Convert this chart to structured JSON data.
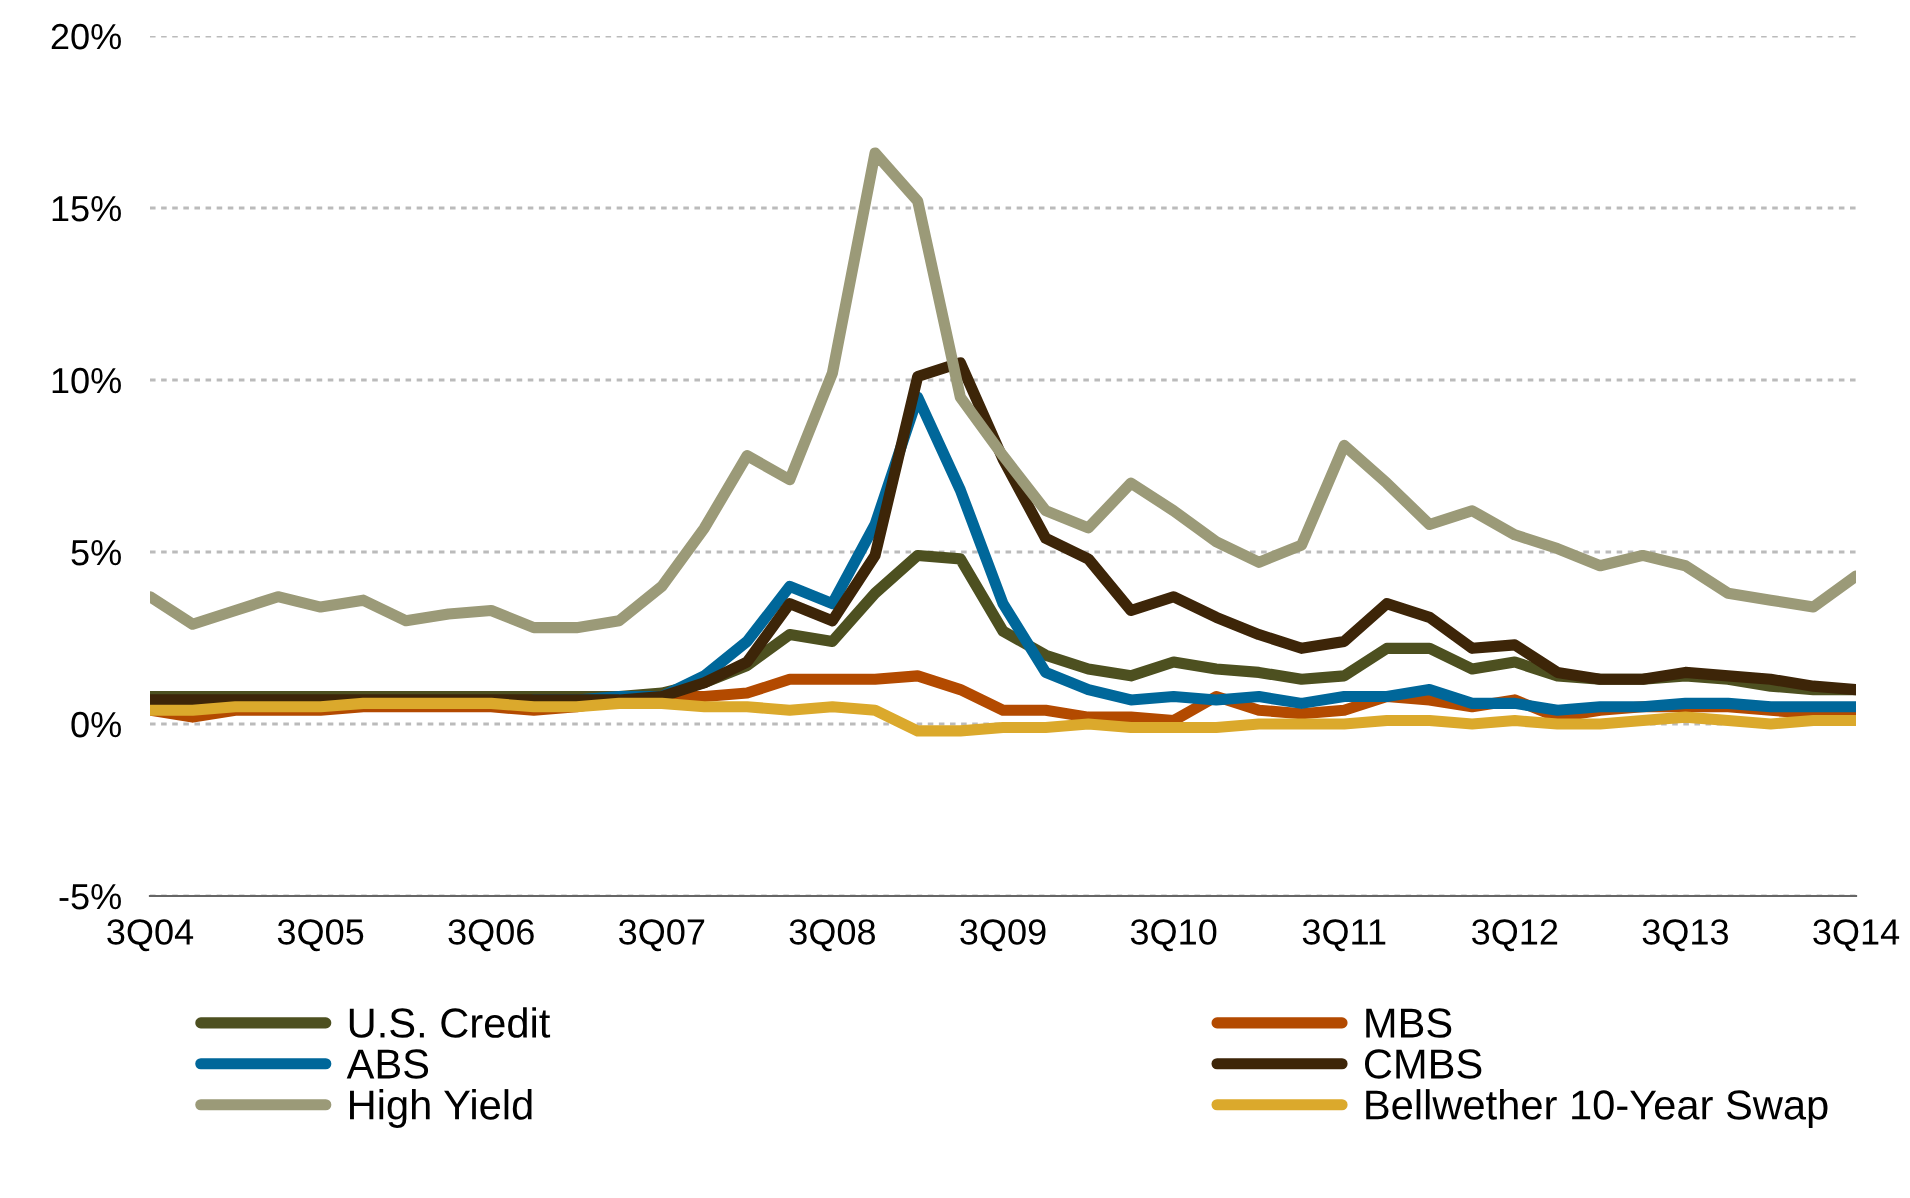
{
  "chart_data": {
    "type": "line",
    "categories": [
      "3Q04",
      null,
      null,
      null,
      "3Q05",
      null,
      null,
      null,
      "3Q06",
      null,
      null,
      null,
      "3Q07",
      null,
      null,
      null,
      "3Q08",
      null,
      null,
      null,
      "3Q09",
      null,
      null,
      null,
      "3Q10",
      null,
      null,
      null,
      "3Q11",
      null,
      null,
      null,
      "3Q12",
      null,
      null,
      null,
      "3Q13",
      null,
      null,
      null,
      "3Q14"
    ],
    "series": [
      {
        "name": "U.S. Credit",
        "color": "#4d5020",
        "values": [
          0.8,
          0.8,
          0.8,
          0.8,
          0.8,
          0.8,
          0.8,
          0.8,
          0.8,
          0.8,
          0.8,
          0.8,
          0.9,
          1.2,
          1.7,
          2.6,
          2.4,
          3.8,
          4.9,
          4.8,
          2.7,
          2.0,
          1.6,
          1.4,
          1.8,
          1.6,
          1.5,
          1.3,
          1.4,
          2.2,
          2.2,
          1.6,
          1.8,
          1.4,
          1.3,
          1.3,
          1.4,
          1.3,
          1.1,
          1.0,
          1.0
        ]
      },
      {
        "name": "MBS",
        "color": "#b34a00",
        "values": [
          0.4,
          0.2,
          0.4,
          0.4,
          0.4,
          0.5,
          0.5,
          0.5,
          0.5,
          0.4,
          0.5,
          0.7,
          0.8,
          0.8,
          0.9,
          1.3,
          1.3,
          1.3,
          1.4,
          1.0,
          0.4,
          0.4,
          0.2,
          0.2,
          0.1,
          0.8,
          0.4,
          0.3,
          0.4,
          0.8,
          0.7,
          0.5,
          0.7,
          0.2,
          0.4,
          0.5,
          0.5,
          0.5,
          0.4,
          0.3,
          0.3
        ]
      },
      {
        "name": "ABS",
        "color": "#00679a",
        "values": [
          null,
          null,
          null,
          null,
          null,
          null,
          null,
          null,
          null,
          0.7,
          0.7,
          0.8,
          0.8,
          1.4,
          2.4,
          4.0,
          3.5,
          5.8,
          9.5,
          6.8,
          3.5,
          1.5,
          1.0,
          0.7,
          0.8,
          0.7,
          0.8,
          0.6,
          0.8,
          0.8,
          1.0,
          0.6,
          0.6,
          0.4,
          0.5,
          0.5,
          0.6,
          0.6,
          0.5,
          0.5,
          0.5
        ]
      },
      {
        "name": "CMBS",
        "color": "#3d2508",
        "values": [
          0.7,
          0.7,
          0.7,
          0.7,
          0.7,
          0.7,
          0.7,
          0.7,
          0.7,
          0.7,
          0.7,
          0.7,
          0.8,
          1.2,
          1.8,
          3.5,
          3.0,
          4.9,
          10.1,
          10.5,
          7.7,
          5.4,
          4.8,
          3.3,
          3.7,
          3.1,
          2.6,
          2.2,
          2.4,
          3.5,
          3.1,
          2.2,
          2.3,
          1.5,
          1.3,
          1.3,
          1.5,
          1.4,
          1.3,
          1.1,
          1.0
        ]
      },
      {
        "name": "High Yield",
        "color": "#9b9a78",
        "values": [
          3.7,
          2.9,
          3.3,
          3.7,
          3.4,
          3.6,
          3.0,
          3.2,
          3.3,
          2.8,
          2.8,
          3.0,
          4.0,
          5.7,
          7.8,
          7.1,
          10.2,
          16.6,
          15.2,
          9.5,
          7.8,
          6.2,
          5.7,
          7.0,
          6.2,
          5.3,
          4.7,
          5.2,
          8.1,
          7.0,
          5.8,
          6.2,
          5.5,
          5.1,
          4.6,
          4.9,
          4.6,
          3.8,
          3.6,
          3.4,
          4.3
        ]
      },
      {
        "name": "Bellwether 10-Year Swap",
        "color": "#dba92c",
        "values": [
          0.4,
          0.4,
          0.5,
          0.5,
          0.5,
          0.6,
          0.6,
          0.6,
          0.6,
          0.5,
          0.5,
          0.6,
          0.6,
          0.5,
          0.5,
          0.4,
          0.5,
          0.4,
          -0.2,
          -0.2,
          -0.1,
          -0.1,
          0.0,
          -0.1,
          -0.1,
          -0.1,
          0.0,
          0.0,
          0.0,
          0.1,
          0.1,
          0.0,
          0.1,
          0.0,
          0.0,
          0.1,
          0.2,
          0.1,
          0.0,
          0.1,
          0.1
        ]
      }
    ],
    "ylim": [
      -5,
      20
    ],
    "yticks": [
      {
        "value": -5,
        "label": "-5%"
      },
      {
        "value": 0,
        "label": "0%"
      },
      {
        "value": 5,
        "label": "5%"
      },
      {
        "value": 10,
        "label": "10%"
      },
      {
        "value": 15,
        "label": "15%"
      },
      {
        "value": 20,
        "label": "20%"
      }
    ],
    "grid": "y",
    "legend": "bottom",
    "marker": "none",
    "line_style": "solid"
  }
}
